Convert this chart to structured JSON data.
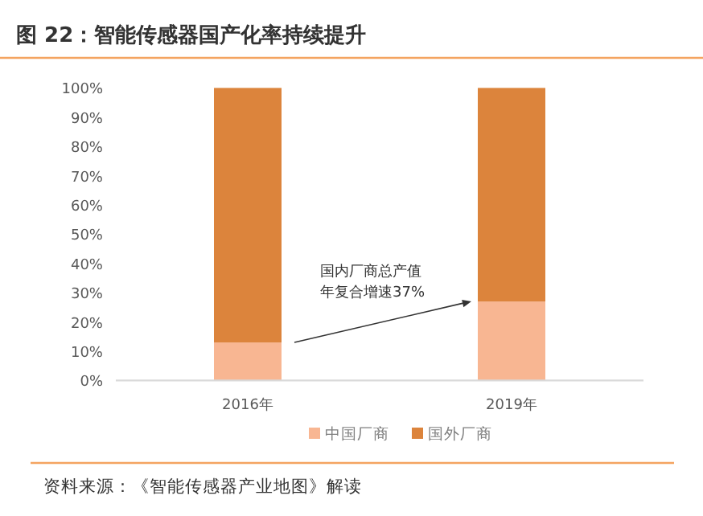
{
  "chart_data": {
    "type": "bar",
    "title": "图 22：智能传感器国产化率持续提升",
    "stacked": true,
    "categories": [
      "2016年",
      "2019年"
    ],
    "series": [
      {
        "name": "中国厂商",
        "color": "#f8b692",
        "values": [
          13,
          27
        ]
      },
      {
        "name": "国外厂商",
        "color": "#dc843c",
        "values": [
          87,
          73
        ]
      }
    ],
    "ylim": [
      0,
      100
    ],
    "yticks": [
      {
        "value": 0,
        "label": "0%"
      },
      {
        "value": 10,
        "label": "10%"
      },
      {
        "value": 20,
        "label": "20%"
      },
      {
        "value": 30,
        "label": "30%"
      },
      {
        "value": 40,
        "label": "40%"
      },
      {
        "value": 50,
        "label": "50%"
      },
      {
        "value": 60,
        "label": "60%"
      },
      {
        "value": 70,
        "label": "70%"
      },
      {
        "value": 80,
        "label": "80%"
      },
      {
        "value": 90,
        "label": "90%"
      },
      {
        "value": 100,
        "label": "100%"
      }
    ],
    "legend": "bottom",
    "annotations": [
      "国内厂商总产值年复合增速37%",
      "资料来源：《智能传感器产业地图》解读"
    ]
  }
}
